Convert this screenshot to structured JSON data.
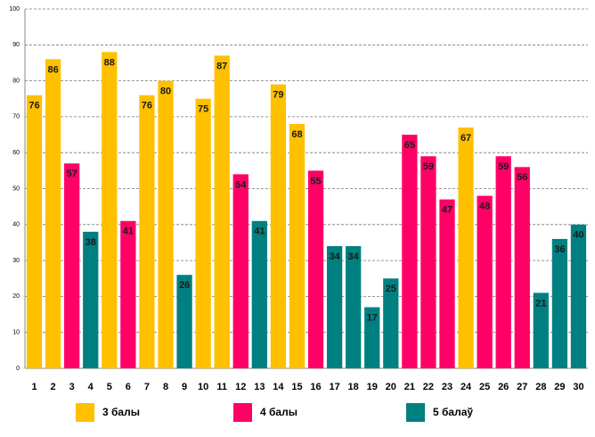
{
  "chart_data": {
    "type": "bar",
    "categories": [
      "1",
      "2",
      "3",
      "4",
      "5",
      "6",
      "7",
      "8",
      "9",
      "10",
      "11",
      "12",
      "13",
      "14",
      "15",
      "16",
      "17",
      "18",
      "19",
      "20",
      "21",
      "22",
      "23",
      "24",
      "25",
      "26",
      "27",
      "28",
      "29",
      "30"
    ],
    "series": [
      {
        "name": "3 балы",
        "color": "#ffc000",
        "values": [
          76,
          86,
          null,
          null,
          88,
          null,
          76,
          80,
          null,
          75,
          87,
          null,
          null,
          79,
          68,
          null,
          null,
          null,
          null,
          null,
          null,
          null,
          null,
          67,
          null,
          null,
          null,
          null,
          null,
          null
        ]
      },
      {
        "name": "4 балы",
        "color": "#ff0066",
        "values": [
          null,
          null,
          57,
          null,
          null,
          41,
          null,
          null,
          null,
          null,
          null,
          54,
          null,
          null,
          null,
          55,
          null,
          null,
          null,
          null,
          65,
          59,
          47,
          null,
          48,
          59,
          56,
          null,
          null,
          null
        ]
      },
      {
        "name": "5 балаў",
        "color": "#008080",
        "values": [
          null,
          null,
          null,
          38,
          null,
          null,
          null,
          null,
          26,
          null,
          null,
          null,
          41,
          null,
          null,
          null,
          34,
          34,
          17,
          25,
          null,
          null,
          null,
          null,
          null,
          null,
          null,
          21,
          36,
          40
        ]
      }
    ],
    "ylim": [
      0,
      100
    ],
    "yticks": [
      0,
      10,
      20,
      30,
      40,
      50,
      60,
      70,
      80,
      90,
      100
    ],
    "grid": true,
    "legend": "bottom"
  }
}
